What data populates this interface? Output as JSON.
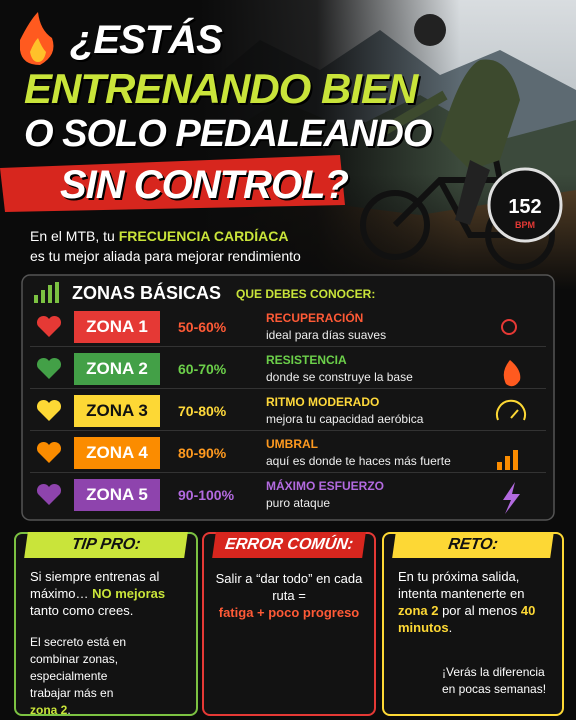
{
  "header": {
    "title_lines": [
      "¿ESTÁS",
      "ENTRENANDO BIEN",
      "O SOLO PEDALEANDO",
      "SIN CONTROL?"
    ]
  },
  "intro": {
    "parts": [
      "En el MTB, tu ",
      "FRECUENCIA CARDÍACA",
      "es tu mejor aliada para mejorar rendimiento"
    ]
  },
  "bpm": {
    "value": 152,
    "unit": "BPM"
  },
  "zones": {
    "title": "ZONAS BÁSICAS",
    "subtitle": "QUE DEBES CONOCER:",
    "rows": [
      {
        "name": "ZONA 1",
        "range": "50-60%",
        "label": "RECUPERACIÓN",
        "description": "ideal para días suaves",
        "color": "#e53935",
        "label_color": "#ff5a36"
      },
      {
        "name": "ZONA 2",
        "range": "60-70%",
        "label": "RESISTENCIA",
        "description": "donde se construye la base",
        "color": "#43a047",
        "label_color": "#6cd04a"
      },
      {
        "name": "ZONA 3",
        "range": "70-80%",
        "label": "RITMO MODERADO",
        "description": "mejora tu capacidad aeróbica",
        "color": "#fdd835",
        "label_color": "#ffd93b"
      },
      {
        "name": "ZONA 4",
        "range": "80-90%",
        "label": "UMBRAL",
        "description": "aquí es donde te haces más fuerte",
        "color": "#fb8c00",
        "label_color": "#ff9a1f"
      },
      {
        "name": "ZONA 5",
        "range": "90-100%",
        "label": "MÁXIMO ESFUERZO",
        "description": "puro ataque",
        "color": "#8e44ad",
        "label_color": "#b36ae0"
      }
    ]
  },
  "tips": [
    {
      "title": "TIP PRO:",
      "parts": [
        "Si siempre entrenas al máximo… ",
        "NO mejoras",
        " tanto como crees."
      ],
      "extra": [
        "El secreto está en combinar zonas, especialmente trabajar más en ",
        "zona 2",
        "."
      ]
    },
    {
      "title": "ERROR COMÚN:",
      "parts": [
        "Salir a “dar todo” en cada ruta =",
        "fatiga + poco progreso"
      ]
    },
    {
      "title": "RETO:",
      "parts": [
        "En tu próxima salida, intenta mantenerte en ",
        "zona 2",
        " por al menos ",
        "40 minutos",
        "."
      ],
      "extra": [
        "¡Verás la diferencia en pocas semanas!"
      ]
    }
  ]
}
